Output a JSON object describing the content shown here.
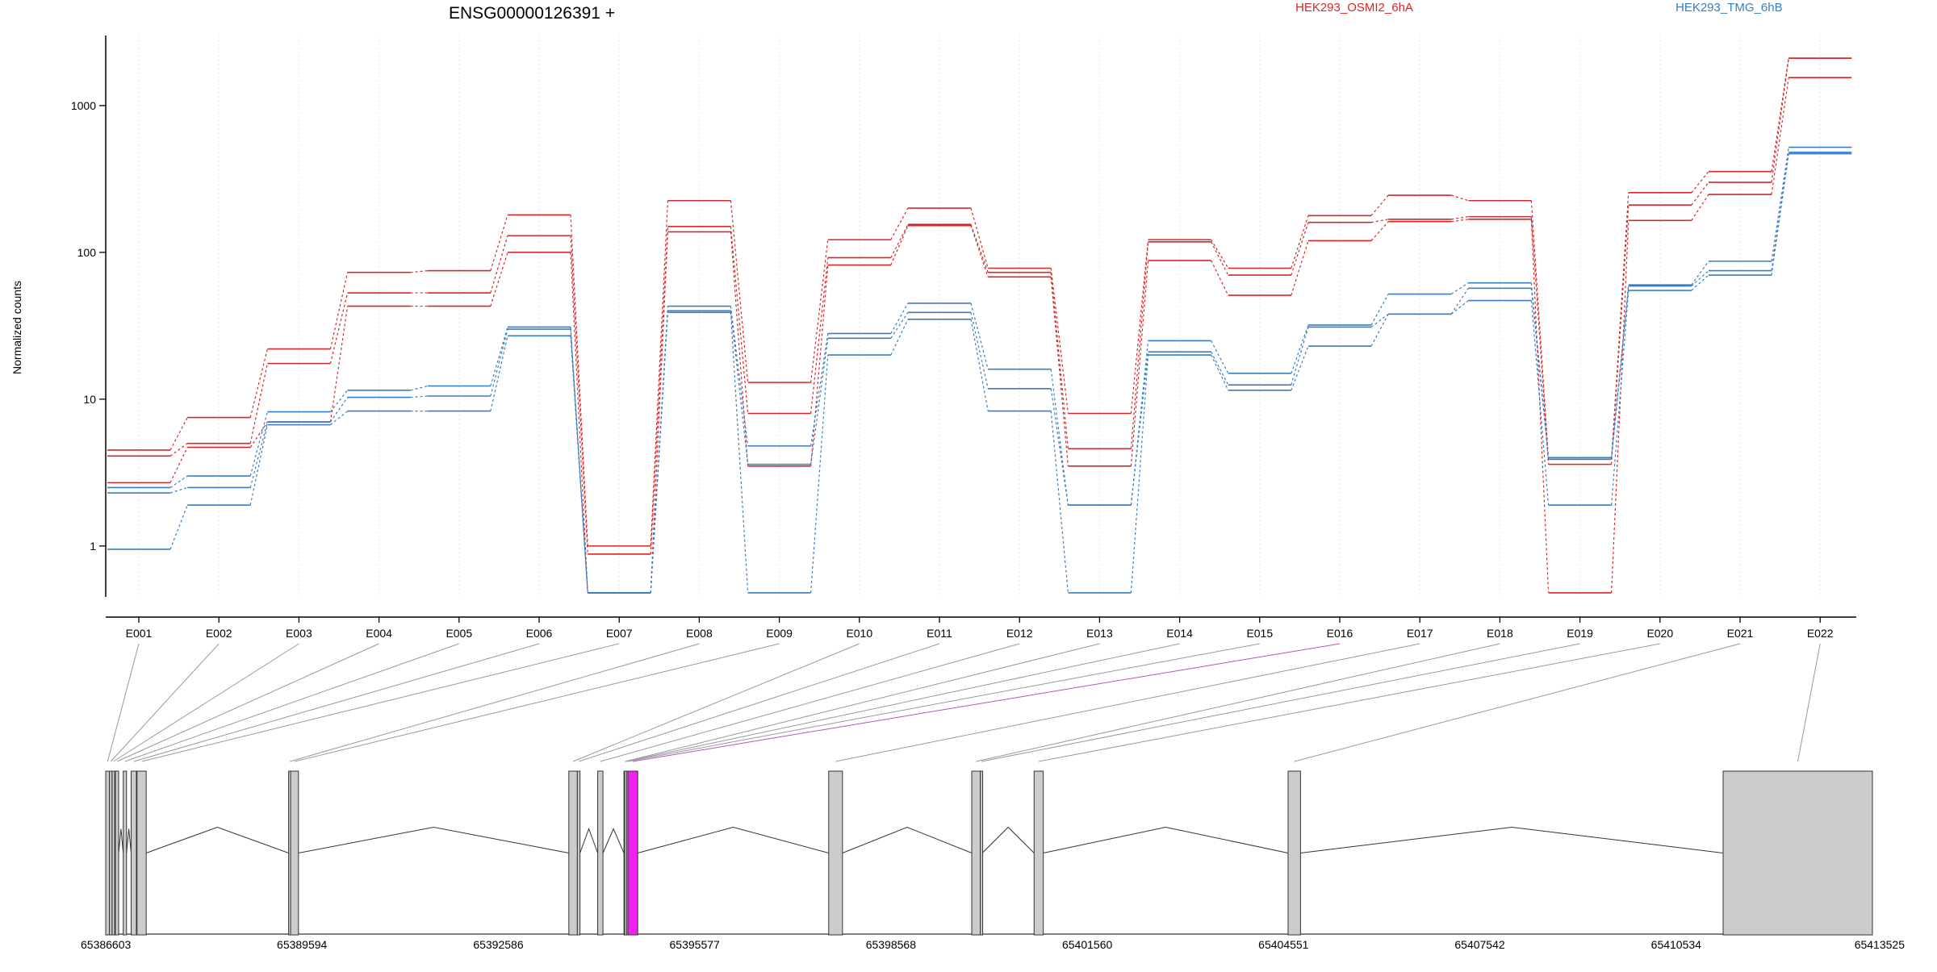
{
  "title": "ENSG00000126391 +",
  "colors": {
    "HEK293_OSMI2_6hA": "#d62728",
    "HEK293_TMG_6hB": "#3a7dbf",
    "highlight": "#ee22ee",
    "exon_fill": "#cccccc",
    "axis": "#000000",
    "connector": "#999999"
  },
  "chart_data": {
    "type": "line",
    "ylabel": "Normalized counts",
    "yscale": "log",
    "ylim": [
      0.45,
      3000
    ],
    "yticks": [
      1,
      10,
      100,
      1000
    ],
    "ytick_labels": [
      "1",
      "10",
      "100",
      "1000"
    ],
    "grid": "vertical dotted lines at exon positions",
    "legend": "top, above plot",
    "categories": [
      "E001",
      "E002",
      "E003",
      "E004",
      "E005",
      "E006",
      "E007",
      "E008",
      "E009",
      "E010",
      "E011",
      "E012",
      "E013",
      "E014",
      "E015",
      "E016",
      "E017",
      "E018",
      "E019",
      "E020",
      "E021",
      "E022"
    ],
    "highlighted_exon": "E016",
    "series": [
      {
        "name": "HEK293_OSMI2_6hA",
        "values": [
          4.5,
          7.5,
          22,
          73,
          75,
          180,
          1.0,
          225,
          13,
          122,
          200,
          78,
          8.0,
          122,
          78,
          178,
          245,
          225,
          3.9,
          255,
          355,
          2100
        ]
      },
      {
        "name": "HEK293_OSMI2_6hA",
        "values": [
          4.1,
          5.0,
          17.5,
          53,
          53,
          130,
          0.88,
          150,
          8.0,
          92,
          155,
          73,
          4.6,
          118,
          70,
          160,
          168,
          175,
          3.6,
          210,
          300,
          2100
        ]
      },
      {
        "name": "HEK293_OSMI2_6hA",
        "values": [
          2.7,
          4.7,
          7.0,
          43,
          43,
          100,
          0.48,
          138,
          3.5,
          82,
          152,
          68,
          3.5,
          88,
          51,
          120,
          162,
          168,
          0.48,
          165,
          248,
          1550
        ]
      },
      {
        "name": "HEK293_TMG_6hB",
        "values": [
          2.5,
          3.0,
          8.2,
          11.5,
          12.3,
          31,
          0.48,
          43,
          4.8,
          28,
          45,
          16,
          1.9,
          25,
          15,
          32,
          52,
          62,
          4.0,
          60,
          87,
          520
        ]
      },
      {
        "name": "HEK293_TMG_6hB",
        "values": [
          2.3,
          2.5,
          7.0,
          10.3,
          10.5,
          30,
          0.48,
          40,
          3.6,
          26,
          39,
          11.8,
          1.9,
          21,
          12.5,
          31,
          38,
          57,
          3.9,
          59,
          75,
          480
        ]
      },
      {
        "name": "HEK293_TMG_6hB",
        "values": [
          0.95,
          1.9,
          6.7,
          8.3,
          8.3,
          27,
          0.48,
          39,
          0.48,
          20,
          35,
          8.3,
          0.48,
          20,
          11.5,
          23,
          38,
          47,
          1.9,
          55,
          70,
          470
        ]
      }
    ]
  },
  "gene_model": {
    "coordinate_labels": [
      "65386603",
      "65389594",
      "65392586",
      "65395577",
      "65398568",
      "65401560",
      "65404551",
      "65407542",
      "65410534",
      "65413525"
    ],
    "xmin": 65386603,
    "xmax": 65413525,
    "exons": [
      {
        "id": "E001",
        "start": 65386603,
        "end": 65386660
      },
      {
        "id": "E002",
        "start": 65386660,
        "end": 65386700
      },
      {
        "id": "E003",
        "start": 65386700,
        "end": 65386740
      },
      {
        "id": "E004",
        "start": 65386750,
        "end": 65386800
      },
      {
        "id": "E005",
        "start": 65386870,
        "end": 65386920
      },
      {
        "id": "E006",
        "start": 65386990,
        "end": 65387070
      },
      {
        "id": "E007",
        "start": 65387080,
        "end": 65387220
      },
      {
        "id": "E008",
        "start": 65389390,
        "end": 65389420
      },
      {
        "id": "E009",
        "start": 65389420,
        "end": 65389540
      },
      {
        "id": "E010",
        "start": 65393660,
        "end": 65393790
      },
      {
        "id": "E011",
        "start": 65393790,
        "end": 65393830
      },
      {
        "id": "E012",
        "start": 65394100,
        "end": 65394180
      },
      {
        "id": "E013",
        "start": 65394500,
        "end": 65394510
      },
      {
        "id": "E014",
        "start": 65394510,
        "end": 65394540
      },
      {
        "id": "E015",
        "start": 65394540,
        "end": 65394560
      },
      {
        "id": "E016",
        "start": 65394560,
        "end": 65394710
      },
      {
        "id": "E017",
        "start": 65397620,
        "end": 65397830
      },
      {
        "id": "E018",
        "start": 65399800,
        "end": 65399930
      },
      {
        "id": "E019",
        "start": 65399930,
        "end": 65399960
      },
      {
        "id": "E020",
        "start": 65400750,
        "end": 65400890
      },
      {
        "id": "E021",
        "start": 65404620,
        "end": 65404810
      },
      {
        "id": "E022",
        "start": 65411250,
        "end": 65413525
      }
    ],
    "introns": [
      [
        65386740,
        65386750
      ],
      [
        65386800,
        65386870
      ],
      [
        65386920,
        65386990
      ],
      [
        65387220,
        65389390
      ],
      [
        65389540,
        65393660
      ],
      [
        65393830,
        65394100
      ],
      [
        65394180,
        65394500
      ],
      [
        65394710,
        65397620
      ],
      [
        65397830,
        65399800
      ],
      [
        65399960,
        65400750
      ],
      [
        65400890,
        65404620
      ],
      [
        65404810,
        65411250
      ]
    ]
  }
}
